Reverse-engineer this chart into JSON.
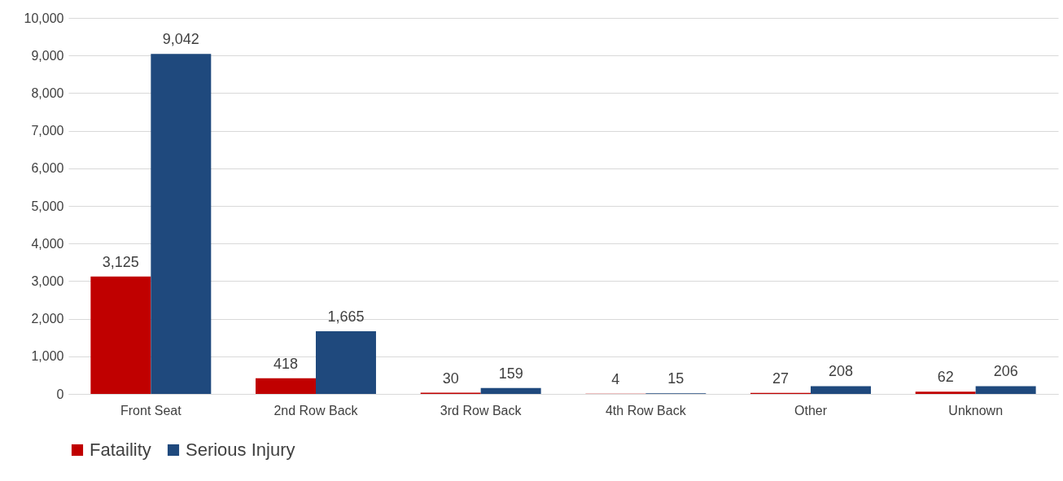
{
  "chart_data": {
    "type": "bar",
    "categories": [
      "Front Seat",
      "2nd Row Back",
      "3rd Row Back",
      "4th Row Back",
      "Other",
      "Unknown"
    ],
    "series": [
      {
        "name": "Fataility",
        "color": "#c00000",
        "values": [
          3125,
          418,
          30,
          4,
          27,
          62
        ],
        "value_labels": [
          "3,125",
          "418",
          "30",
          "4",
          "27",
          "62"
        ]
      },
      {
        "name": "Serious Injury",
        "color": "#1f497d",
        "values": [
          9042,
          1665,
          159,
          15,
          208,
          206
        ],
        "value_labels": [
          "9,042",
          "1,665",
          "159",
          "15",
          "208",
          "206"
        ]
      }
    ],
    "ylim": [
      0,
      10000
    ],
    "yticks": [
      0,
      {
        "value": 1000,
        "label": "1,000"
      },
      {
        "value": 2000,
        "label": "2,000"
      },
      {
        "value": 3000,
        "label": "3,000"
      },
      {
        "value": 4000,
        "label": "4,000"
      },
      {
        "value": 5000,
        "label": "5,000"
      },
      {
        "value": 6000,
        "label": "6,000"
      },
      {
        "value": 7000,
        "label": "7,000"
      },
      {
        "value": 8000,
        "label": "8,000"
      },
      {
        "value": 9000,
        "label": "9,000"
      },
      {
        "value": 10000,
        "label": "10,000"
      }
    ],
    "grid": "y",
    "legend": "bottom"
  }
}
